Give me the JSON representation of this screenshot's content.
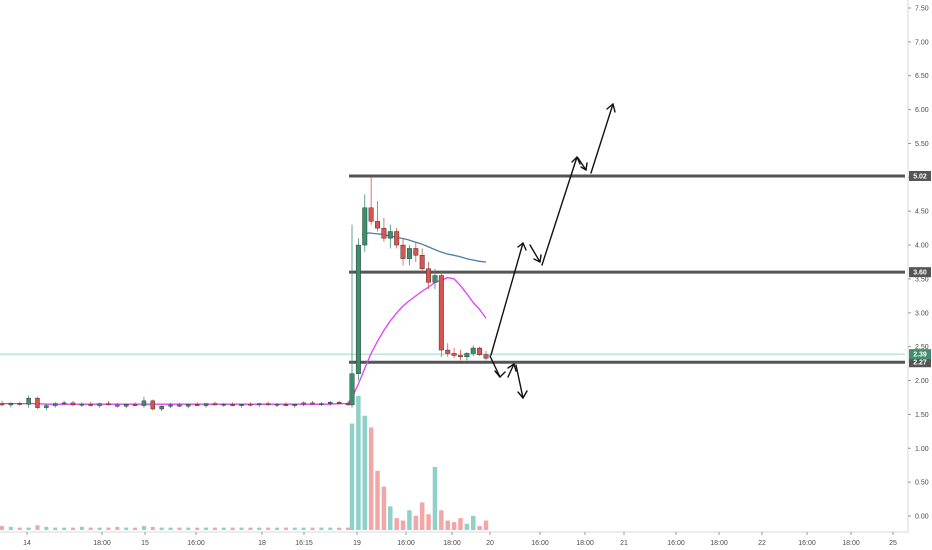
{
  "chart_data": {
    "type": "candlestick",
    "colors": {
      "up": "#3e8e6e",
      "down": "#d9534f",
      "volume_up": "#8fd1c8",
      "volume_down": "#f2a6a6",
      "ma_pink": "#e040fb",
      "ma_blue": "#4a7fa0",
      "level": "#555555",
      "price_line": "#7fc8b0",
      "arrow": "#111111",
      "tag_dark": "#555555",
      "tag_green": "#3e8e6e"
    },
    "y_axis": {
      "min": -0.2,
      "max": 7.5,
      "ticks": [
        "7.50",
        "7.00",
        "6.50",
        "6.00",
        "5.50",
        "5.00",
        "4.50",
        "4.00",
        "3.50",
        "3.00",
        "2.50",
        "2.00",
        "1.50",
        "1.00",
        "0.50",
        "0.00"
      ]
    },
    "x_axis": {
      "ticks": [
        "14",
        "18:00",
        "15",
        "16:00",
        "18",
        "16:15",
        "19",
        "16:00",
        "18:00",
        "20",
        "16:00",
        "18:00",
        "21",
        "16:00",
        "18:00",
        "22",
        "16:00",
        "18:00",
        "25"
      ]
    },
    "levels": [
      {
        "value": 5.02,
        "label": "5.02"
      },
      {
        "value": 3.6,
        "label": "3.60"
      },
      {
        "value": 2.27,
        "label": "2.27"
      }
    ],
    "current_price": {
      "value": 2.39,
      "label": "2.39"
    },
    "candles": [
      {
        "o": 1.66,
        "h": 1.7,
        "l": 1.62,
        "c": 1.64
      },
      {
        "o": 1.64,
        "h": 1.68,
        "l": 1.6,
        "c": 1.66
      },
      {
        "o": 1.66,
        "h": 1.69,
        "l": 1.63,
        "c": 1.65
      },
      {
        "o": 1.65,
        "h": 1.78,
        "l": 1.6,
        "c": 1.74
      },
      {
        "o": 1.74,
        "h": 1.76,
        "l": 1.58,
        "c": 1.6
      },
      {
        "o": 1.6,
        "h": 1.66,
        "l": 1.56,
        "c": 1.63
      },
      {
        "o": 1.63,
        "h": 1.68,
        "l": 1.6,
        "c": 1.66
      },
      {
        "o": 1.66,
        "h": 1.7,
        "l": 1.63,
        "c": 1.67
      },
      {
        "o": 1.67,
        "h": 1.7,
        "l": 1.62,
        "c": 1.64
      },
      {
        "o": 1.64,
        "h": 1.68,
        "l": 1.61,
        "c": 1.65
      },
      {
        "o": 1.65,
        "h": 1.69,
        "l": 1.62,
        "c": 1.63
      },
      {
        "o": 1.63,
        "h": 1.67,
        "l": 1.6,
        "c": 1.66
      },
      {
        "o": 1.66,
        "h": 1.7,
        "l": 1.63,
        "c": 1.64
      },
      {
        "o": 1.64,
        "h": 1.67,
        "l": 1.6,
        "c": 1.62
      },
      {
        "o": 1.62,
        "h": 1.66,
        "l": 1.59,
        "c": 1.65
      },
      {
        "o": 1.65,
        "h": 1.68,
        "l": 1.62,
        "c": 1.63
      },
      {
        "o": 1.63,
        "h": 1.76,
        "l": 1.6,
        "c": 1.7
      },
      {
        "o": 1.7,
        "h": 1.72,
        "l": 1.56,
        "c": 1.58
      },
      {
        "o": 1.58,
        "h": 1.64,
        "l": 1.55,
        "c": 1.62
      },
      {
        "o": 1.62,
        "h": 1.67,
        "l": 1.59,
        "c": 1.64
      },
      {
        "o": 1.64,
        "h": 1.67,
        "l": 1.61,
        "c": 1.62
      },
      {
        "o": 1.62,
        "h": 1.66,
        "l": 1.59,
        "c": 1.65
      },
      {
        "o": 1.65,
        "h": 1.68,
        "l": 1.62,
        "c": 1.63
      },
      {
        "o": 1.63,
        "h": 1.67,
        "l": 1.6,
        "c": 1.66
      },
      {
        "o": 1.66,
        "h": 1.69,
        "l": 1.63,
        "c": 1.64
      },
      {
        "o": 1.64,
        "h": 1.67,
        "l": 1.61,
        "c": 1.65
      },
      {
        "o": 1.65,
        "h": 1.68,
        "l": 1.62,
        "c": 1.63
      },
      {
        "o": 1.63,
        "h": 1.66,
        "l": 1.6,
        "c": 1.65
      },
      {
        "o": 1.65,
        "h": 1.68,
        "l": 1.62,
        "c": 1.64
      },
      {
        "o": 1.64,
        "h": 1.67,
        "l": 1.61,
        "c": 1.66
      },
      {
        "o": 1.66,
        "h": 1.69,
        "l": 1.63,
        "c": 1.64
      },
      {
        "o": 1.64,
        "h": 1.67,
        "l": 1.61,
        "c": 1.65
      },
      {
        "o": 1.65,
        "h": 1.68,
        "l": 1.62,
        "c": 1.63
      },
      {
        "o": 1.63,
        "h": 1.66,
        "l": 1.6,
        "c": 1.65
      },
      {
        "o": 1.65,
        "h": 1.69,
        "l": 1.62,
        "c": 1.67
      },
      {
        "o": 1.67,
        "h": 1.7,
        "l": 1.64,
        "c": 1.65
      },
      {
        "o": 1.65,
        "h": 1.68,
        "l": 1.62,
        "c": 1.66
      },
      {
        "o": 1.66,
        "h": 1.7,
        "l": 1.63,
        "c": 1.68
      },
      {
        "o": 1.68,
        "h": 1.7,
        "l": 1.64,
        "c": 1.66
      },
      {
        "o": 1.66,
        "h": 1.69,
        "l": 1.63,
        "c": 1.64
      },
      {
        "o": 1.64,
        "h": 4.3,
        "l": 1.6,
        "c": 2.1
      },
      {
        "o": 2.1,
        "h": 4.1,
        "l": 2.0,
        "c": 4.0
      },
      {
        "o": 4.0,
        "h": 4.75,
        "l": 3.9,
        "c": 4.55
      },
      {
        "o": 4.55,
        "h": 5.0,
        "l": 4.3,
        "c": 4.35
      },
      {
        "o": 4.35,
        "h": 4.65,
        "l": 4.2,
        "c": 4.25
      },
      {
        "o": 4.25,
        "h": 4.4,
        "l": 4.05,
        "c": 4.1
      },
      {
        "o": 4.1,
        "h": 4.3,
        "l": 3.95,
        "c": 4.2
      },
      {
        "o": 4.2,
        "h": 4.25,
        "l": 3.95,
        "c": 4.0
      },
      {
        "o": 4.0,
        "h": 4.1,
        "l": 3.7,
        "c": 3.8
      },
      {
        "o": 3.8,
        "h": 4.0,
        "l": 3.7,
        "c": 3.95
      },
      {
        "o": 3.95,
        "h": 4.05,
        "l": 3.75,
        "c": 3.85
      },
      {
        "o": 3.85,
        "h": 3.95,
        "l": 3.6,
        "c": 3.65
      },
      {
        "o": 3.65,
        "h": 3.75,
        "l": 3.35,
        "c": 3.45
      },
      {
        "o": 3.45,
        "h": 3.65,
        "l": 3.35,
        "c": 3.55
      },
      {
        "o": 3.55,
        "h": 3.6,
        "l": 2.35,
        "c": 2.45
      },
      {
        "o": 2.45,
        "h": 2.55,
        "l": 2.35,
        "c": 2.4
      },
      {
        "o": 2.4,
        "h": 2.48,
        "l": 2.33,
        "c": 2.37
      },
      {
        "o": 2.37,
        "h": 2.45,
        "l": 2.3,
        "c": 2.35
      },
      {
        "o": 2.35,
        "h": 2.42,
        "l": 2.3,
        "c": 2.4
      },
      {
        "o": 2.4,
        "h": 2.52,
        "l": 2.36,
        "c": 2.48
      },
      {
        "o": 2.48,
        "h": 2.5,
        "l": 2.36,
        "c": 2.38
      },
      {
        "o": 2.38,
        "h": 2.44,
        "l": 2.3,
        "c": 2.33
      }
    ],
    "volume": [
      0.05,
      0.04,
      0.03,
      0.03,
      0.06,
      0.04,
      0.03,
      0.03,
      0.03,
      0.04,
      0.03,
      0.03,
      0.03,
      0.04,
      0.03,
      0.03,
      0.05,
      0.04,
      0.03,
      0.03,
      0.03,
      0.03,
      0.03,
      0.03,
      0.03,
      0.03,
      0.03,
      0.03,
      0.03,
      0.03,
      0.03,
      0.03,
      0.03,
      0.03,
      0.03,
      0.03,
      0.03,
      0.03,
      0.03,
      0.03,
      1.35,
      1.7,
      1.45,
      1.3,
      0.75,
      0.55,
      0.3,
      0.15,
      0.12,
      0.25,
      0.18,
      0.35,
      0.2,
      0.8,
      0.25,
      0.12,
      0.1,
      0.15,
      0.08,
      0.18,
      0.05,
      0.12
    ],
    "ma_pink": [
      1.66,
      1.66,
      1.66,
      1.66,
      1.66,
      1.65,
      1.65,
      1.65,
      1.65,
      1.65,
      1.65,
      1.65,
      1.65,
      1.65,
      1.65,
      1.65,
      1.65,
      1.65,
      1.65,
      1.65,
      1.65,
      1.65,
      1.65,
      1.65,
      1.65,
      1.65,
      1.65,
      1.65,
      1.65,
      1.65,
      1.65,
      1.65,
      1.65,
      1.65,
      1.65,
      1.65,
      1.65,
      1.65,
      1.66,
      1.66,
      1.75,
      1.95,
      2.18,
      2.4,
      2.58,
      2.74,
      2.88,
      3.0,
      3.1,
      3.18,
      3.25,
      3.32,
      3.38,
      3.45,
      3.48,
      3.52,
      3.5,
      3.4,
      3.28,
      3.15,
      3.05,
      2.92
    ],
    "ma_blue": [
      4.15,
      4.18,
      4.17,
      4.16,
      4.14,
      4.12,
      4.1,
      4.08,
      4.05,
      4.02,
      3.98,
      3.94,
      3.9,
      3.87,
      3.85,
      3.83,
      3.8,
      3.78,
      3.76,
      3.75
    ]
  }
}
